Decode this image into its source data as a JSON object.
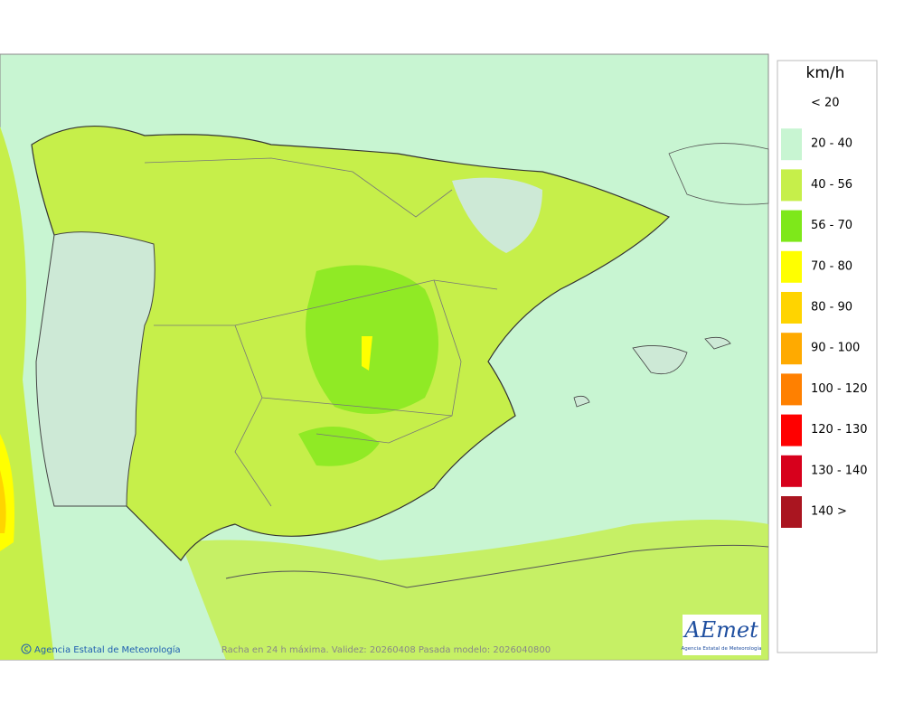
{
  "legend": {
    "unit": "km/h",
    "items": [
      {
        "label": "< 20",
        "color": "#ffffff"
      },
      {
        "label": "20 - 40",
        "color": "#c8f5d2"
      },
      {
        "label": "40 - 56",
        "color": "#c6ef4a"
      },
      {
        "label": "56 - 70",
        "color": "#7ee81a"
      },
      {
        "label": "70 - 80",
        "color": "#ffff00"
      },
      {
        "label": "80 - 90",
        "color": "#ffd400"
      },
      {
        "label": "90 - 100",
        "color": "#ffaa00"
      },
      {
        "label": "100 - 120",
        "color": "#ff8000"
      },
      {
        "label": "120 - 130",
        "color": "#ff0000"
      },
      {
        "label": "130 - 140",
        "color": "#d7001c"
      },
      {
        "label": "140 >",
        "color": "#aa1520"
      }
    ]
  },
  "footer": {
    "copyright": "Agencia Estatal de Meteorología",
    "caption": "Racha en 24 h máxima. Validez: 20260408 Pasada modelo: 2026040800"
  },
  "logo": {
    "name": "AEmet",
    "subtitle": "Agencia Estatal de Meteorología"
  }
}
